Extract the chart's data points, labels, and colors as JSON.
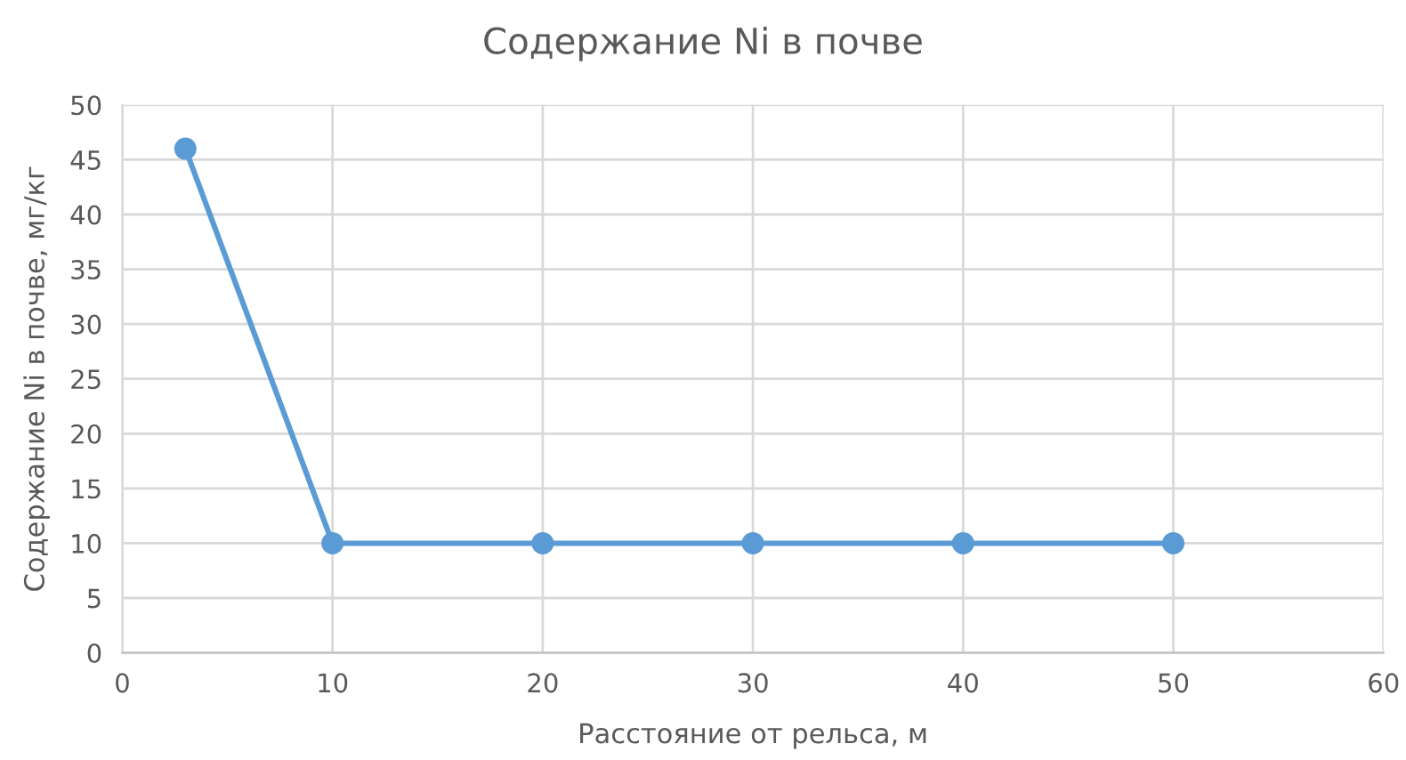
{
  "chart_data": {
    "type": "line",
    "title": "Содержание Ni в почве",
    "xlabel": "Расстояние от рельса, м",
    "ylabel": "Содержание Ni в почве, мг/кг",
    "x": [
      3,
      10,
      20,
      30,
      40,
      50
    ],
    "series": [
      {
        "color": "#5b9bd5",
        "values": [
          46,
          10,
          10,
          10,
          10,
          10
        ]
      }
    ],
    "xlim": [
      0,
      60
    ],
    "xticks": [
      0,
      10,
      20,
      30,
      40,
      50,
      60
    ],
    "ylim": [
      0,
      50
    ],
    "yticks": [
      0,
      5,
      10,
      15,
      20,
      25,
      30,
      35,
      40,
      45,
      50
    ],
    "grid": true,
    "marker": "circle",
    "line_style": "solid",
    "legend": false
  }
}
